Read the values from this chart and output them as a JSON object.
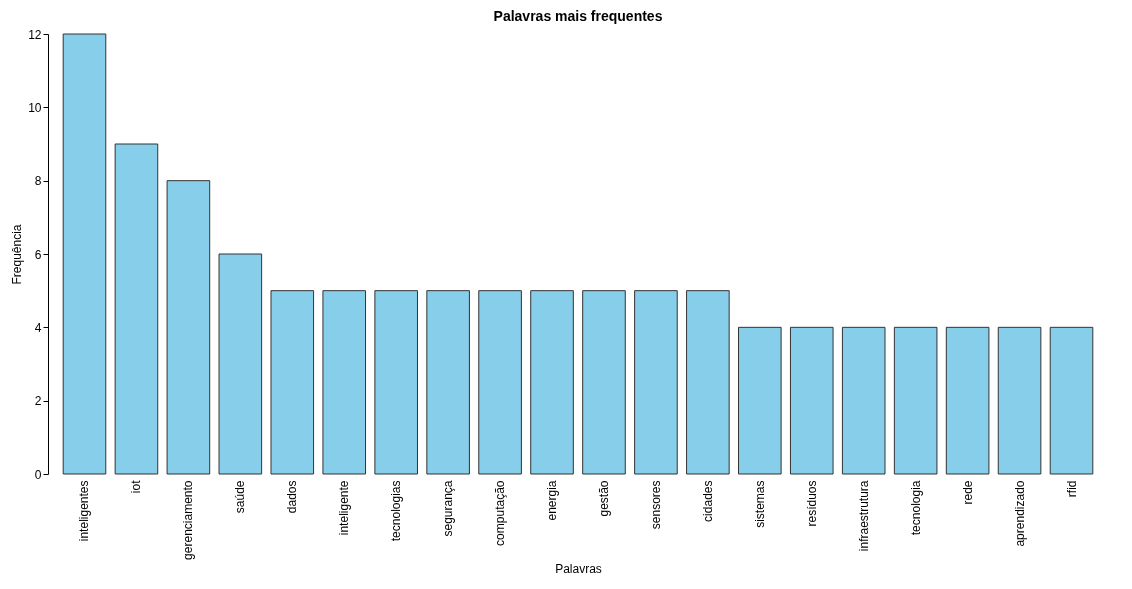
{
  "chart_data": {
    "type": "bar",
    "title": "Palavras mais frequentes",
    "xlabel": "Palavras",
    "ylabel": "Frequência",
    "categories": [
      "inteligentes",
      "iot",
      "gerenciamento",
      "saúde",
      "dados",
      "inteligente",
      "tecnologias",
      "segurança",
      "computação",
      "energia",
      "gestão",
      "sensores",
      "cidades",
      "sistemas",
      "resíduos",
      "infraestrutura",
      "tecnologia",
      "rede",
      "aprendizado",
      "rfid"
    ],
    "values": [
      12,
      9,
      8,
      6,
      5,
      5,
      5,
      5,
      5,
      5,
      5,
      5,
      5,
      4,
      4,
      4,
      4,
      4,
      4,
      4
    ],
    "color": "#87ceeb",
    "ylim": [
      0,
      12
    ],
    "yticks": [
      0,
      2,
      4,
      6,
      8,
      10,
      12
    ],
    "grid": false
  }
}
